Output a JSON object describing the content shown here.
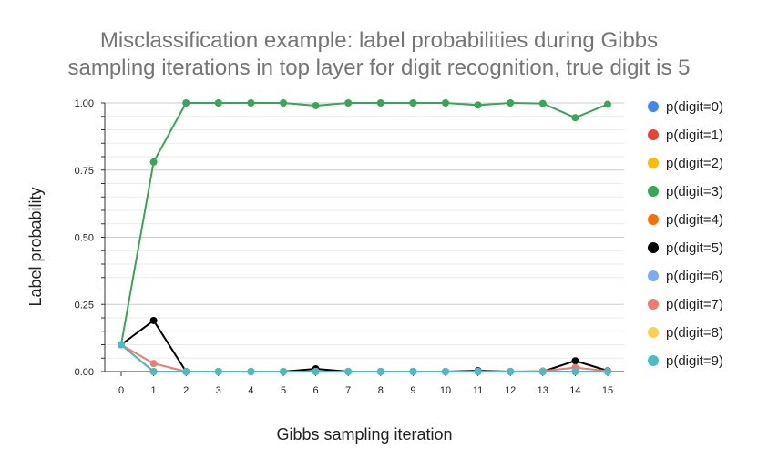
{
  "chart_data": {
    "type": "line",
    "title_lines": [
      "Misclassification example: label probabilities during Gibbs",
      "sampling iterations in top layer for digit recognition, true digit is 5"
    ],
    "xlabel": "Gibbs sampling iteration",
    "ylabel": "Label probability",
    "x": [
      0,
      1,
      2,
      3,
      4,
      5,
      6,
      7,
      8,
      9,
      10,
      11,
      12,
      13,
      14,
      15
    ],
    "x_tick_labels": [
      "0",
      "1",
      "2",
      "3",
      "4",
      "5",
      "6",
      "7",
      "8",
      "9",
      "10",
      "11",
      "12",
      "13",
      "14",
      "15"
    ],
    "ylim": [
      0,
      1
    ],
    "y_ticks": [
      0,
      0.25,
      0.5,
      0.75,
      1
    ],
    "y_tick_labels": [
      "0.00",
      "0.25",
      "0.50",
      "0.75",
      "1.00"
    ],
    "grid": true,
    "legend_position": "right",
    "series": [
      {
        "name": "p(digit=0)",
        "color": "#4285F4",
        "values": [
          0.1,
          0,
          0,
          0,
          0,
          0,
          0,
          0,
          0,
          0,
          0,
          0,
          0,
          0,
          0,
          0
        ]
      },
      {
        "name": "p(digit=1)",
        "color": "#EA4335",
        "values": [
          0.1,
          0,
          0,
          0,
          0,
          0,
          0,
          0,
          0,
          0,
          0,
          0,
          0,
          0,
          0,
          0
        ]
      },
      {
        "name": "p(digit=2)",
        "color": "#FBBC04",
        "values": [
          0.1,
          0,
          0,
          0,
          0,
          0,
          0,
          0,
          0,
          0,
          0,
          0,
          0,
          0,
          0,
          0
        ]
      },
      {
        "name": "p(digit=3)",
        "color": "#34A853",
        "values": [
          0.1,
          0.78,
          1.0,
          1.0,
          1.0,
          1.0,
          0.99,
          1.0,
          1.0,
          1.0,
          1.0,
          0.992,
          1.0,
          0.998,
          0.945,
          0.995
        ]
      },
      {
        "name": "p(digit=4)",
        "color": "#FF6D01",
        "values": [
          0.1,
          0,
          0,
          0,
          0,
          0,
          0,
          0,
          0,
          0,
          0,
          0,
          0,
          0,
          0,
          0
        ]
      },
      {
        "name": "p(digit=5)",
        "color": "#000000",
        "values": [
          0.1,
          0.19,
          0,
          0,
          0,
          0,
          0.01,
          0,
          0,
          0,
          0,
          0.003,
          0,
          0,
          0.04,
          0.003
        ]
      },
      {
        "name": "p(digit=6)",
        "color": "#7BAAF7",
        "values": [
          0.1,
          0,
          0,
          0,
          0,
          0,
          0,
          0,
          0,
          0,
          0,
          0,
          0,
          0,
          0,
          0
        ]
      },
      {
        "name": "p(digit=7)",
        "color": "#EE7B71",
        "values": [
          0.1,
          0.03,
          0,
          0,
          0,
          0,
          0,
          0,
          0,
          0,
          0,
          0,
          0,
          0.002,
          0.015,
          0.002
        ]
      },
      {
        "name": "p(digit=8)",
        "color": "#FCD04F",
        "values": [
          0.1,
          0,
          0,
          0,
          0,
          0,
          0,
          0,
          0,
          0,
          0,
          0,
          0,
          0,
          0,
          0
        ]
      },
      {
        "name": "p(digit=9)",
        "color": "#46BDC6",
        "values": [
          0.1,
          0,
          0,
          0,
          0,
          0,
          0,
          0,
          0,
          0,
          0,
          0,
          0,
          0,
          0,
          0
        ]
      }
    ]
  }
}
